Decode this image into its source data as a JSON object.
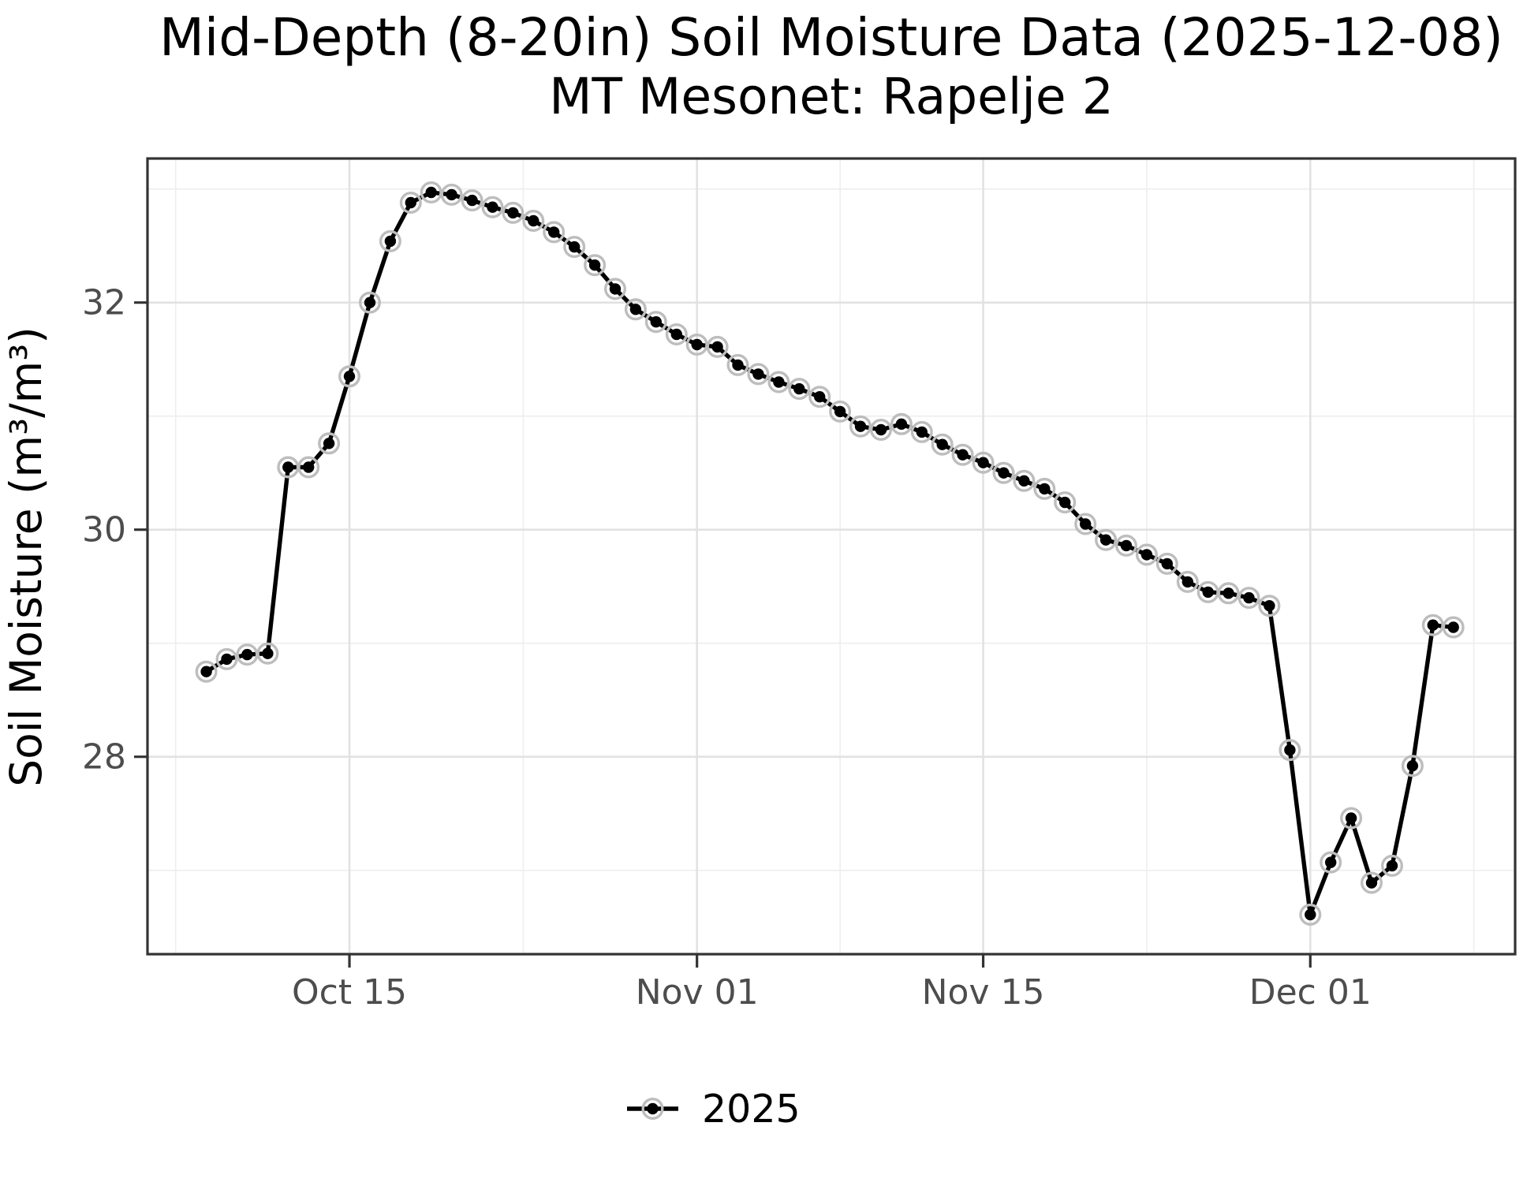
{
  "chart_data": {
    "type": "line",
    "title": "Mid-Depth (8-20in) Soil Moisture Data (2025-12-08)",
    "subtitle": "MT Mesonet: Rapelje 2",
    "xlabel": "",
    "ylabel": "Soil Moisture (m³/m³)",
    "legend": {
      "position": "bottom",
      "entries": [
        "2025"
      ]
    },
    "x": [
      "2025-10-08",
      "2025-10-09",
      "2025-10-10",
      "2025-10-11",
      "2025-10-12",
      "2025-10-13",
      "2025-10-14",
      "2025-10-15",
      "2025-10-16",
      "2025-10-17",
      "2025-10-18",
      "2025-10-19",
      "2025-10-20",
      "2025-10-21",
      "2025-10-22",
      "2025-10-23",
      "2025-10-24",
      "2025-10-25",
      "2025-10-26",
      "2025-10-27",
      "2025-10-28",
      "2025-10-29",
      "2025-10-30",
      "2025-10-31",
      "2025-11-01",
      "2025-11-02",
      "2025-11-03",
      "2025-11-04",
      "2025-11-05",
      "2025-11-06",
      "2025-11-07",
      "2025-11-08",
      "2025-11-09",
      "2025-11-10",
      "2025-11-11",
      "2025-11-12",
      "2025-11-13",
      "2025-11-14",
      "2025-11-15",
      "2025-11-16",
      "2025-11-17",
      "2025-11-18",
      "2025-11-19",
      "2025-11-20",
      "2025-11-21",
      "2025-11-22",
      "2025-11-23",
      "2025-11-24",
      "2025-11-25",
      "2025-11-26",
      "2025-11-27",
      "2025-11-28",
      "2025-11-29",
      "2025-11-30",
      "2025-12-01",
      "2025-12-02",
      "2025-12-03",
      "2025-12-04",
      "2025-12-05",
      "2025-12-06",
      "2025-12-07",
      "2025-12-08"
    ],
    "series": [
      {
        "name": "2025",
        "values": [
          28.75,
          28.86,
          28.9,
          28.91,
          30.55,
          30.55,
          30.76,
          31.35,
          32.0,
          32.54,
          32.88,
          32.97,
          32.95,
          32.9,
          32.84,
          32.79,
          32.72,
          32.62,
          32.49,
          32.33,
          32.12,
          31.94,
          31.83,
          31.72,
          31.63,
          31.61,
          31.45,
          31.37,
          31.3,
          31.24,
          31.17,
          31.04,
          30.91,
          30.88,
          30.93,
          30.86,
          30.75,
          30.66,
          30.59,
          30.5,
          30.43,
          30.36,
          30.24,
          30.05,
          29.91,
          29.86,
          29.78,
          29.7,
          29.54,
          29.45,
          29.44,
          29.4,
          29.33,
          28.06,
          26.61,
          27.07,
          27.46,
          26.89,
          27.04,
          27.92,
          29.16,
          29.14
        ]
      }
    ],
    "x_axis": {
      "tick_labels": [
        "Oct 15",
        "Nov 01",
        "Nov 15",
        "Dec 01"
      ],
      "tick_dates": [
        "2025-10-15",
        "2025-11-01",
        "2025-11-15",
        "2025-12-01"
      ],
      "start_date": "2025-10-08",
      "end_date": "2025-12-08"
    },
    "y_axis": {
      "tick_labels": [
        "28",
        "30",
        "32"
      ],
      "ticks": [
        28,
        30,
        32
      ],
      "minor_ticks": [
        27,
        29,
        31,
        33
      ],
      "range": [
        26.26,
        33.27
      ]
    },
    "grid": true,
    "marker_style": "black dot with light gray halo ring",
    "colors": {
      "line": "#000000",
      "point": "#000000",
      "point_halo": "#bdbdbd",
      "grid_major": "#e2e2e2",
      "grid_minor": "#eeeeee",
      "panel_border": "#333333",
      "tick_mark": "#333333",
      "tick_label": "#4d4d4d",
      "background": "#ffffff"
    }
  }
}
